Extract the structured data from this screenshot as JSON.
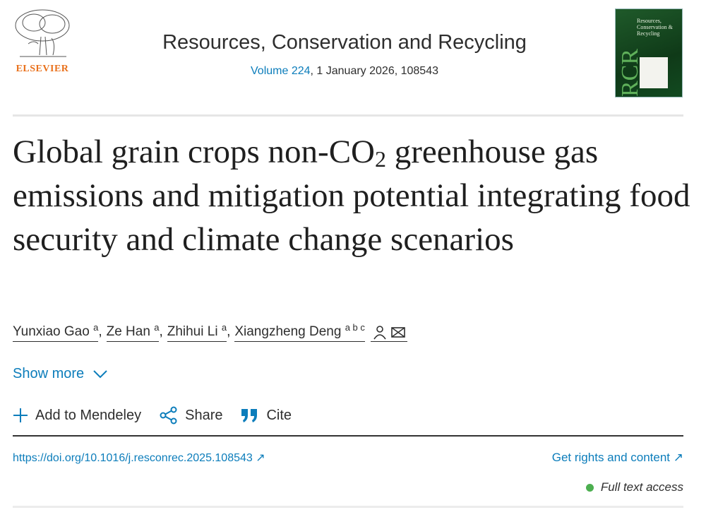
{
  "header": {
    "publisher_logo": "ELSEVIER",
    "journal_title": "Resources, Conservation and Recycling",
    "volume_link": "Volume 224",
    "issue_info": ", 1 January 2026, 108543",
    "cover_title": "Resources, Conservation & Recycling",
    "cover_monogram": "RCR"
  },
  "article": {
    "title_pre": "Global grain crops non-CO",
    "title_sub": "2",
    "title_post": " greenhouse gas emissions and mitigation potential integrating food security and climate change scenarios",
    "authors": [
      {
        "name": "Yunxiao Gao",
        "aff": "a"
      },
      {
        "name": "Ze Han",
        "aff": "a"
      },
      {
        "name": "Zhihui Li",
        "aff": "a"
      },
      {
        "name": "Xiangzheng Deng",
        "aff": "a b c"
      }
    ],
    "show_more": "Show more"
  },
  "actions": {
    "mendeley": "Add to Mendeley",
    "share": "Share",
    "cite": "Cite"
  },
  "links": {
    "doi": "https://doi.org/10.1016/j.resconrec.2025.108543 ↗",
    "rights": "Get rights and content ↗"
  },
  "access": {
    "label": "Full text access",
    "color": "#4caf50"
  },
  "colors": {
    "link": "#0c7dbb",
    "elsevier": "#e9711c"
  }
}
